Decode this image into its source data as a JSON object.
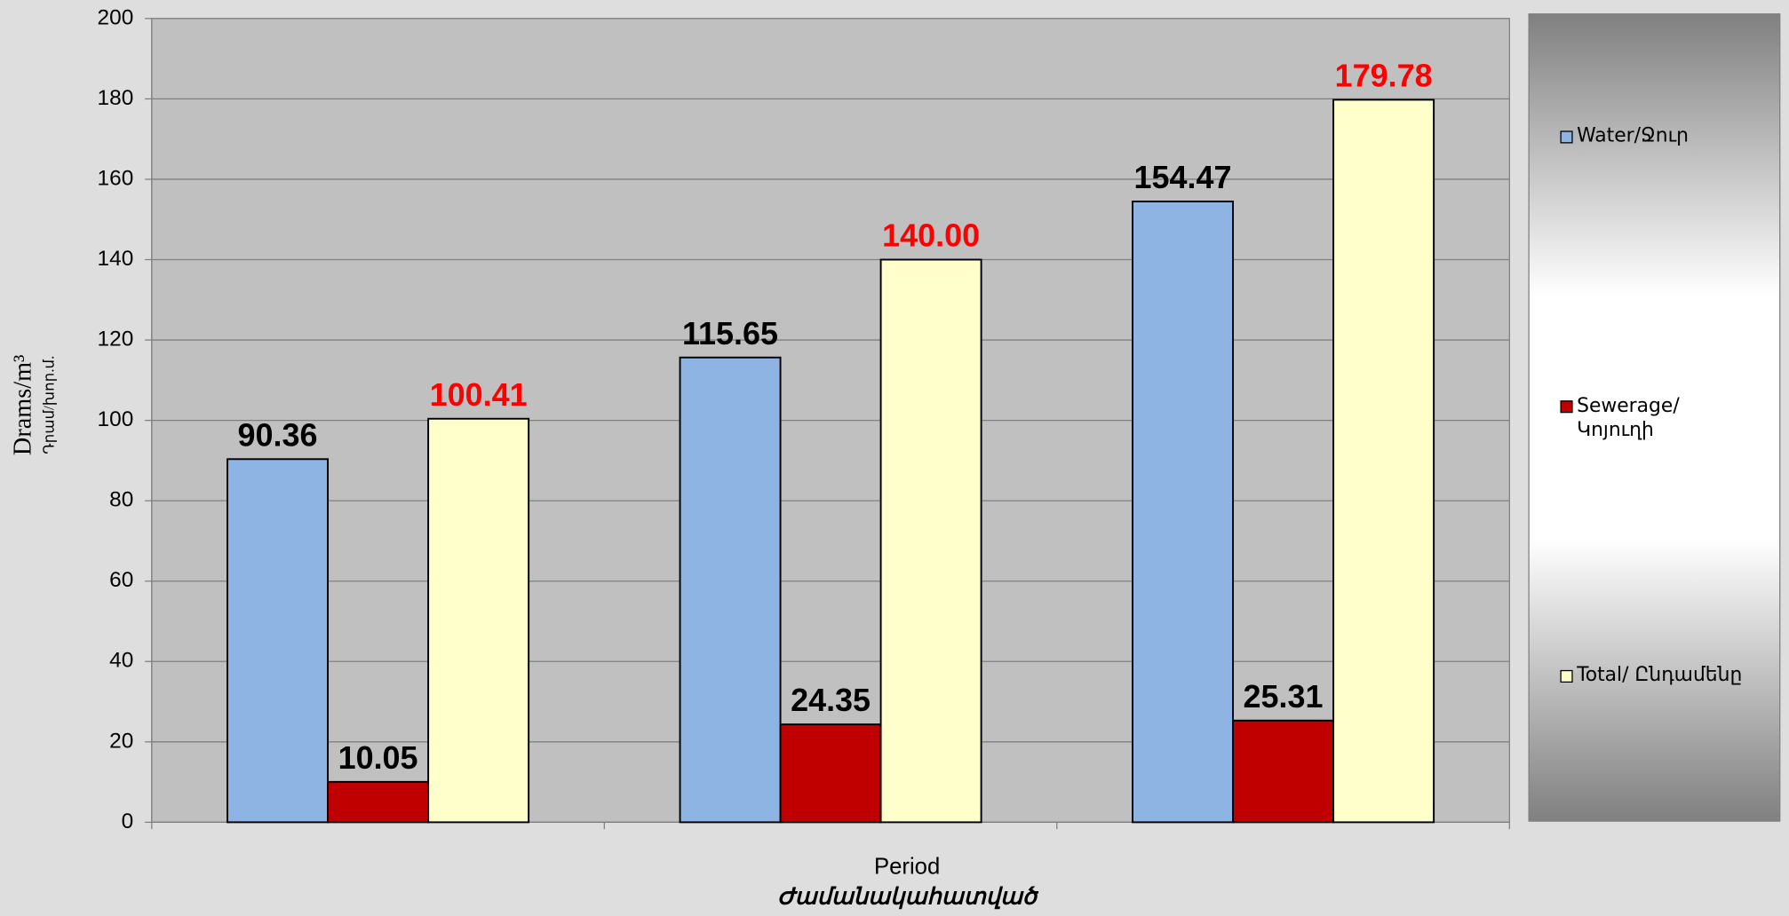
{
  "chart_data": {
    "type": "bar",
    "y_label": "Drams/m³",
    "y_label_sub": "Դրամ/խոր.մ.",
    "x_label": "Period",
    "x_label_sub": "Ժամանակահատված",
    "categories": [
      null,
      null,
      null
    ],
    "series": [
      {
        "name": "Water/Ջուր",
        "color": "#8eb4e3",
        "label_color": "#000000",
        "values": [
          90.36,
          115.65,
          154.47
        ]
      },
      {
        "name": "Sewerage/ Կոյուղի",
        "color": "#c00000",
        "label_color": "#000000",
        "values": [
          10.05,
          24.35,
          25.31
        ]
      },
      {
        "name": "Total/ Ընդամենը",
        "color": "#ffffcc",
        "label_color": "#ff0000",
        "values": [
          100.41,
          140,
          179.78
        ],
        "value_labels": [
          "100.41",
          "140.00",
          "179.78"
        ]
      }
    ],
    "ylim": [
      0,
      200
    ],
    "yticks": [
      0,
      20,
      40,
      60,
      80,
      100,
      120,
      140,
      160,
      180,
      200
    ],
    "grid": true,
    "legend": "right"
  }
}
